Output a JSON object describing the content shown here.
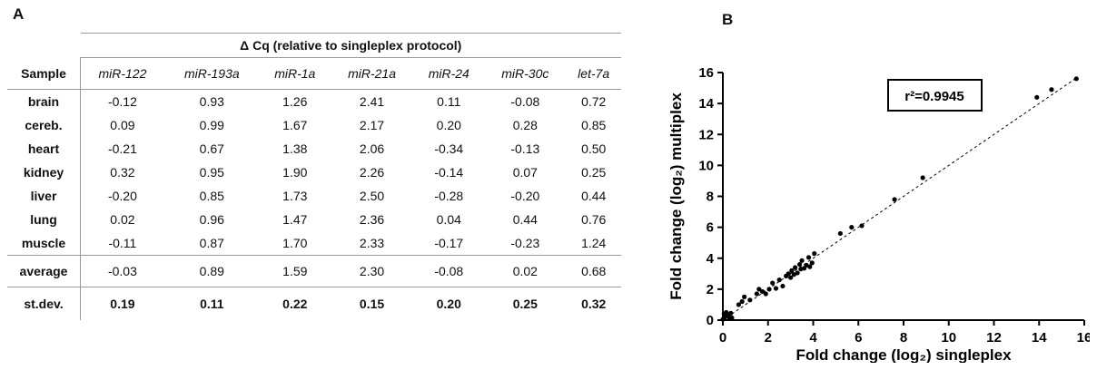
{
  "panel_a_label": "A",
  "panel_b_label": "B",
  "table": {
    "title": "Δ Cq (relative to singleplex protocol)",
    "sample_header": "Sample",
    "columns": [
      "miR-122",
      "miR-193a",
      "miR-1a",
      "miR-21a",
      "miR-24",
      "miR-30c",
      "let-7a"
    ],
    "rows": [
      {
        "sample": "brain",
        "values": [
          "-0.12",
          "0.93",
          "1.26",
          "2.41",
          "0.11",
          "-0.08",
          "0.72"
        ]
      },
      {
        "sample": "cereb.",
        "values": [
          "0.09",
          "0.99",
          "1.67",
          "2.17",
          "0.20",
          "0.28",
          "0.85"
        ]
      },
      {
        "sample": "heart",
        "values": [
          "-0.21",
          "0.67",
          "1.38",
          "2.06",
          "-0.34",
          "-0.13",
          "0.50"
        ]
      },
      {
        "sample": "kidney",
        "values": [
          "0.32",
          "0.95",
          "1.90",
          "2.26",
          "-0.14",
          "0.07",
          "0.25"
        ]
      },
      {
        "sample": "liver",
        "values": [
          "-0.20",
          "0.85",
          "1.73",
          "2.50",
          "-0.28",
          "-0.20",
          "0.44"
        ]
      },
      {
        "sample": "lung",
        "values": [
          "0.02",
          "0.96",
          "1.47",
          "2.36",
          "0.04",
          "0.44",
          "0.76"
        ]
      },
      {
        "sample": "muscle",
        "values": [
          "-0.11",
          "0.87",
          "1.70",
          "2.33",
          "-0.17",
          "-0.23",
          "1.24"
        ]
      }
    ],
    "average": {
      "sample": "average",
      "values": [
        "-0.03",
        "0.89",
        "1.59",
        "2.30",
        "-0.08",
        "0.02",
        "0.68"
      ]
    },
    "stdev": {
      "sample": "st.dev.",
      "values": [
        "0.19",
        "0.11",
        "0.22",
        "0.15",
        "0.20",
        "0.25",
        "0.32"
      ]
    }
  },
  "chart_data": {
    "type": "scatter",
    "xlabel": "Fold change (log₂) singleplex",
    "ylabel": "Fold change (log₂) multiplex",
    "xlim": [
      0,
      16
    ],
    "ylim": [
      0,
      16
    ],
    "xticks": [
      "0",
      "2",
      "4",
      "6",
      "8",
      "10",
      "12",
      "14",
      "16"
    ],
    "yticks": [
      "0",
      "2",
      "4",
      "6",
      "8",
      "10",
      "12",
      "14",
      "16"
    ],
    "annotation": "r²=0.9945",
    "trendline": {
      "x": [
        0,
        15.7
      ],
      "y": [
        0,
        15.7
      ],
      "style": "dashed"
    },
    "points": [
      [
        0.0,
        0.05
      ],
      [
        0.05,
        0.4
      ],
      [
        0.1,
        0.2
      ],
      [
        0.15,
        0.5
      ],
      [
        0.25,
        0.3
      ],
      [
        0.3,
        0.1
      ],
      [
        0.35,
        0.45
      ],
      [
        0.4,
        0.15
      ],
      [
        0.7,
        1.0
      ],
      [
        0.85,
        1.2
      ],
      [
        0.95,
        1.5
      ],
      [
        1.2,
        1.3
      ],
      [
        1.5,
        1.7
      ],
      [
        1.6,
        2.0
      ],
      [
        1.75,
        1.85
      ],
      [
        1.9,
        1.7
      ],
      [
        2.05,
        2.0
      ],
      [
        2.2,
        2.4
      ],
      [
        2.35,
        2.05
      ],
      [
        2.5,
        2.6
      ],
      [
        2.65,
        2.2
      ],
      [
        2.8,
        2.85
      ],
      [
        2.9,
        3.0
      ],
      [
        3.0,
        2.75
      ],
      [
        3.05,
        3.2
      ],
      [
        3.15,
        2.95
      ],
      [
        3.2,
        3.4
      ],
      [
        3.3,
        3.05
      ],
      [
        3.4,
        3.6
      ],
      [
        3.45,
        3.3
      ],
      [
        3.5,
        3.85
      ],
      [
        3.6,
        3.35
      ],
      [
        3.7,
        3.55
      ],
      [
        3.8,
        4.05
      ],
      [
        3.85,
        3.45
      ],
      [
        3.95,
        3.7
      ],
      [
        4.05,
        4.3
      ],
      [
        5.2,
        5.6
      ],
      [
        5.7,
        6.0
      ],
      [
        6.15,
        6.1
      ],
      [
        7.6,
        7.8
      ],
      [
        8.85,
        9.2
      ],
      [
        13.9,
        14.4
      ],
      [
        14.55,
        14.9
      ],
      [
        15.65,
        15.6
      ]
    ]
  }
}
